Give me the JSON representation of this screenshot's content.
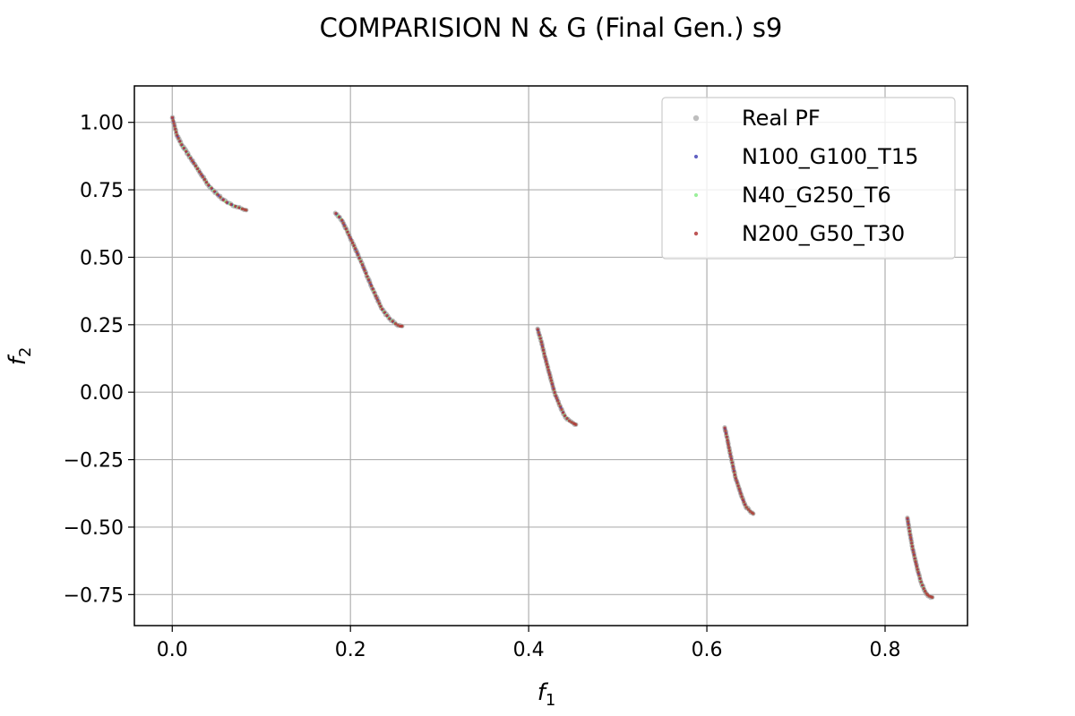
{
  "chart_data": {
    "type": "scatter",
    "title": "COMPARISION N & G (Final Gen.) s9",
    "xlabel": {
      "base": "f",
      "sub": "1"
    },
    "ylabel": {
      "base": "f",
      "sub": "2"
    },
    "xlim": [
      -0.0425,
      0.8925
    ],
    "ylim": [
      -0.865,
      1.135
    ],
    "xticks": [
      0.0,
      0.2,
      0.4,
      0.6,
      0.8
    ],
    "xtick_labels": [
      "0.0",
      "0.2",
      "0.4",
      "0.6",
      "0.8"
    ],
    "yticks": [
      -0.75,
      -0.5,
      -0.25,
      0.0,
      0.25,
      0.5,
      0.75,
      1.0
    ],
    "ytick_labels": [
      "−0.75",
      "−0.50",
      "−0.25",
      "0.00",
      "0.25",
      "0.50",
      "0.75",
      "1.00"
    ],
    "grid": true,
    "legend_position": "top-right",
    "segments": [
      {
        "x": [
          0.0,
          0.005,
          0.01,
          0.015,
          0.02,
          0.03,
          0.04,
          0.05,
          0.06,
          0.07,
          0.078,
          0.083
        ],
        "y": [
          1.02,
          0.955,
          0.92,
          0.895,
          0.87,
          0.82,
          0.77,
          0.735,
          0.705,
          0.69,
          0.68,
          0.675
        ]
      },
      {
        "x": [
          0.183,
          0.19,
          0.198,
          0.205,
          0.213,
          0.22,
          0.228,
          0.235,
          0.243,
          0.25,
          0.255,
          0.258
        ],
        "y": [
          0.665,
          0.64,
          0.585,
          0.535,
          0.475,
          0.42,
          0.36,
          0.31,
          0.275,
          0.255,
          0.245,
          0.245
        ]
      },
      {
        "x": [
          0.41,
          0.414,
          0.418,
          0.422,
          0.426,
          0.43,
          0.435,
          0.44,
          0.445,
          0.45,
          0.453
        ],
        "y": [
          0.235,
          0.19,
          0.135,
          0.085,
          0.035,
          -0.01,
          -0.05,
          -0.085,
          -0.105,
          -0.115,
          -0.12
        ]
      },
      {
        "x": [
          0.62,
          0.623,
          0.626,
          0.629,
          0.632,
          0.636,
          0.64,
          0.644,
          0.648,
          0.652
        ],
        "y": [
          -0.13,
          -0.175,
          -0.225,
          -0.27,
          -0.315,
          -0.355,
          -0.395,
          -0.425,
          -0.44,
          -0.45
        ]
      },
      {
        "x": [
          0.825,
          0.828,
          0.831,
          0.834,
          0.837,
          0.84,
          0.843,
          0.846,
          0.849,
          0.853
        ],
        "y": [
          -0.465,
          -0.525,
          -0.58,
          -0.625,
          -0.665,
          -0.7,
          -0.725,
          -0.745,
          -0.755,
          -0.76
        ]
      }
    ],
    "series": [
      {
        "name": "Real PF",
        "color": "#b3b3b3",
        "points_per_unit": 260,
        "radius": 2.6,
        "opacity": 0.85,
        "jitter": 0.004,
        "offset": 0.0
      },
      {
        "name": "N100_G100_T15",
        "color": "#3b3bb3",
        "points_per_unit": 70,
        "radius": 1.5,
        "opacity": 0.8,
        "jitter": 0.0,
        "offset": 0.004
      },
      {
        "name": "N40_G250_T6",
        "color": "#90ee90",
        "points_per_unit": 70,
        "radius": 1.5,
        "opacity": 0.9,
        "jitter": 0.0,
        "offset": 0.009
      },
      {
        "name": "N200_G50_T30",
        "color": "#b33a3a",
        "points_per_unit": 90,
        "radius": 1.6,
        "opacity": 0.85,
        "jitter": 0.0,
        "offset": 0.002
      }
    ]
  }
}
